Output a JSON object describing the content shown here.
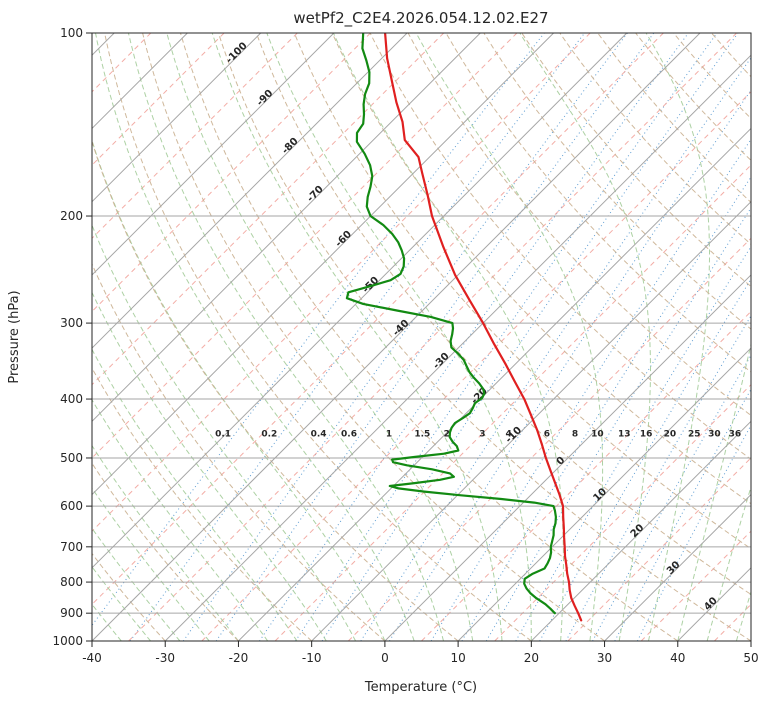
{
  "chart_data": {
    "type": "line",
    "chart_kind": "skew-t-log-p-sounding",
    "title": "wetPf2_C2E4.2026.054.12.02.E27",
    "xlabel": "Temperature (°C)",
    "ylabel": "Pressure (hPa)",
    "xlim": [
      -40,
      50
    ],
    "pressure_lim_hpa": [
      1000,
      100
    ],
    "x_ticks": [
      -40,
      -30,
      -20,
      -10,
      0,
      10,
      20,
      30,
      40,
      50
    ],
    "pressure_ticks_hpa": [
      100,
      200,
      300,
      400,
      500,
      600,
      700,
      800,
      900,
      1000
    ],
    "grid": {
      "isotherm_major_step_c": 10,
      "isotherm_minor_step_c": 5,
      "isotherm_label_values": [
        -100,
        -90,
        -80,
        -70,
        -60,
        -50,
        -40,
        -30,
        -20,
        -10,
        0,
        10,
        20,
        30,
        40
      ],
      "mixing_ratio_values_g_kg": [
        0.1,
        0.2,
        0.4,
        0.6,
        1,
        1.5,
        2,
        3,
        4,
        6,
        8,
        10,
        13,
        16,
        20,
        25,
        30,
        36
      ],
      "dry_adiabats_theta_c": {
        "start": -30,
        "end": 180,
        "step": 10
      },
      "moist_adiabats_t0_c": {
        "start": -40,
        "end": 48,
        "step": 4
      }
    },
    "colors": {
      "temperature": "#e02020",
      "dewpoint": "#128a12",
      "isotherm_major": "#a6a6a6",
      "isotherm_minor": "#f2a49c",
      "pressure_grid": "#a6a6a6",
      "dry_adiabat": "#ccb496",
      "moist_adiabat": "#a9cf9f",
      "mixing_ratio": "#4f93ce",
      "label_negative": "#1f77b4",
      "label_positive": "#d62728",
      "label_zero": "#8c8c8c",
      "frame": "#262626"
    },
    "series": [
      {
        "name": "temperature",
        "color_key": "temperature",
        "points_p_t": [
          [
            925,
            24.0
          ],
          [
            900,
            22.6
          ],
          [
            875,
            21.1
          ],
          [
            850,
            19.6
          ],
          [
            825,
            18.3
          ],
          [
            800,
            17.1
          ],
          [
            775,
            15.7
          ],
          [
            750,
            14.4
          ],
          [
            725,
            13.0
          ],
          [
            700,
            11.7
          ],
          [
            675,
            10.3
          ],
          [
            650,
            8.9
          ],
          [
            625,
            7.4
          ],
          [
            600,
            5.9
          ],
          [
            575,
            3.9
          ],
          [
            550,
            1.7
          ],
          [
            525,
            -0.6
          ],
          [
            500,
            -3.0
          ],
          [
            475,
            -5.4
          ],
          [
            450,
            -8.0
          ],
          [
            425,
            -10.9
          ],
          [
            400,
            -14.0
          ],
          [
            375,
            -17.6
          ],
          [
            350,
            -21.4
          ],
          [
            325,
            -25.6
          ],
          [
            300,
            -30.0
          ],
          [
            275,
            -35.0
          ],
          [
            250,
            -40.4
          ],
          [
            225,
            -45.8
          ],
          [
            200,
            -51.6
          ],
          [
            185,
            -55.0
          ],
          [
            170,
            -58.8
          ],
          [
            160,
            -61.5
          ],
          [
            150,
            -65.7
          ],
          [
            140,
            -68.5
          ],
          [
            130,
            -72.0
          ],
          [
            120,
            -75.5
          ],
          [
            110,
            -79.3
          ],
          [
            100,
            -83.0
          ]
        ]
      },
      {
        "name": "dewpoint",
        "color_key": "dewpoint",
        "points_p_t": [
          [
            900,
            19.4
          ],
          [
            885,
            18.2
          ],
          [
            870,
            16.9
          ],
          [
            850,
            14.8
          ],
          [
            835,
            13.4
          ],
          [
            820,
            12.2
          ],
          [
            805,
            11.2
          ],
          [
            790,
            10.6
          ],
          [
            775,
            11.0
          ],
          [
            760,
            11.9
          ],
          [
            745,
            11.6
          ],
          [
            730,
            11.2
          ],
          [
            715,
            10.6
          ],
          [
            700,
            9.8
          ],
          [
            685,
            9.2
          ],
          [
            670,
            8.6
          ],
          [
            655,
            7.8
          ],
          [
            640,
            7.2
          ],
          [
            625,
            6.4
          ],
          [
            610,
            5.4
          ],
          [
            600,
            4.6
          ],
          [
            592,
            1.5
          ],
          [
            584,
            -3.5
          ],
          [
            576,
            -9.5
          ],
          [
            568,
            -15.0
          ],
          [
            561,
            -19.0
          ],
          [
            556,
            -20.5
          ],
          [
            550,
            -17.5
          ],
          [
            543,
            -14.5
          ],
          [
            537,
            -13.0
          ],
          [
            530,
            -14.0
          ],
          [
            522,
            -17.0
          ],
          [
            514,
            -21.0
          ],
          [
            508,
            -23.3
          ],
          [
            503,
            -23.8
          ],
          [
            498,
            -21.0
          ],
          [
            492,
            -17.5
          ],
          [
            486,
            -16.0
          ],
          [
            478,
            -16.8
          ],
          [
            470,
            -18.0
          ],
          [
            462,
            -19.0
          ],
          [
            454,
            -19.6
          ],
          [
            446,
            -20.0
          ],
          [
            438,
            -20.2
          ],
          [
            430,
            -19.8
          ],
          [
            422,
            -19.5
          ],
          [
            414,
            -19.8
          ],
          [
            406,
            -20.2
          ],
          [
            399,
            -19.9
          ],
          [
            392,
            -20.2
          ],
          [
            385,
            -21.0
          ],
          [
            377,
            -22.3
          ],
          [
            369,
            -23.8
          ],
          [
            361,
            -25.2
          ],
          [
            353,
            -26.4
          ],
          [
            345,
            -27.6
          ],
          [
            337,
            -29.2
          ],
          [
            329,
            -31.0
          ],
          [
            321,
            -32.0
          ],
          [
            313,
            -32.7
          ],
          [
            306,
            -33.4
          ],
          [
            300,
            -34.2
          ],
          [
            293,
            -38.0
          ],
          [
            286,
            -43.5
          ],
          [
            279,
            -49.0
          ],
          [
            273,
            -52.0
          ],
          [
            267,
            -52.6
          ],
          [
            261,
            -50.5
          ],
          [
            255,
            -48.5
          ],
          [
            249,
            -48.0
          ],
          [
            242,
            -48.6
          ],
          [
            235,
            -49.6
          ],
          [
            228,
            -51.0
          ],
          [
            221,
            -52.6
          ],
          [
            214,
            -54.6
          ],
          [
            207,
            -57.0
          ],
          [
            200,
            -60.0
          ],
          [
            193,
            -61.8
          ],
          [
            186,
            -63.0
          ],
          [
            179,
            -64.0
          ],
          [
            172,
            -65.2
          ],
          [
            165,
            -67.0
          ],
          [
            158,
            -69.3
          ],
          [
            151,
            -72.0
          ],
          [
            146,
            -73.2
          ],
          [
            141,
            -73.6
          ],
          [
            136,
            -74.8
          ],
          [
            131,
            -76.2
          ],
          [
            126,
            -77.4
          ],
          [
            121,
            -78.3
          ],
          [
            116,
            -79.8
          ],
          [
            111,
            -81.8
          ],
          [
            106,
            -84.0
          ],
          [
            100,
            -86.0
          ]
        ]
      }
    ]
  }
}
